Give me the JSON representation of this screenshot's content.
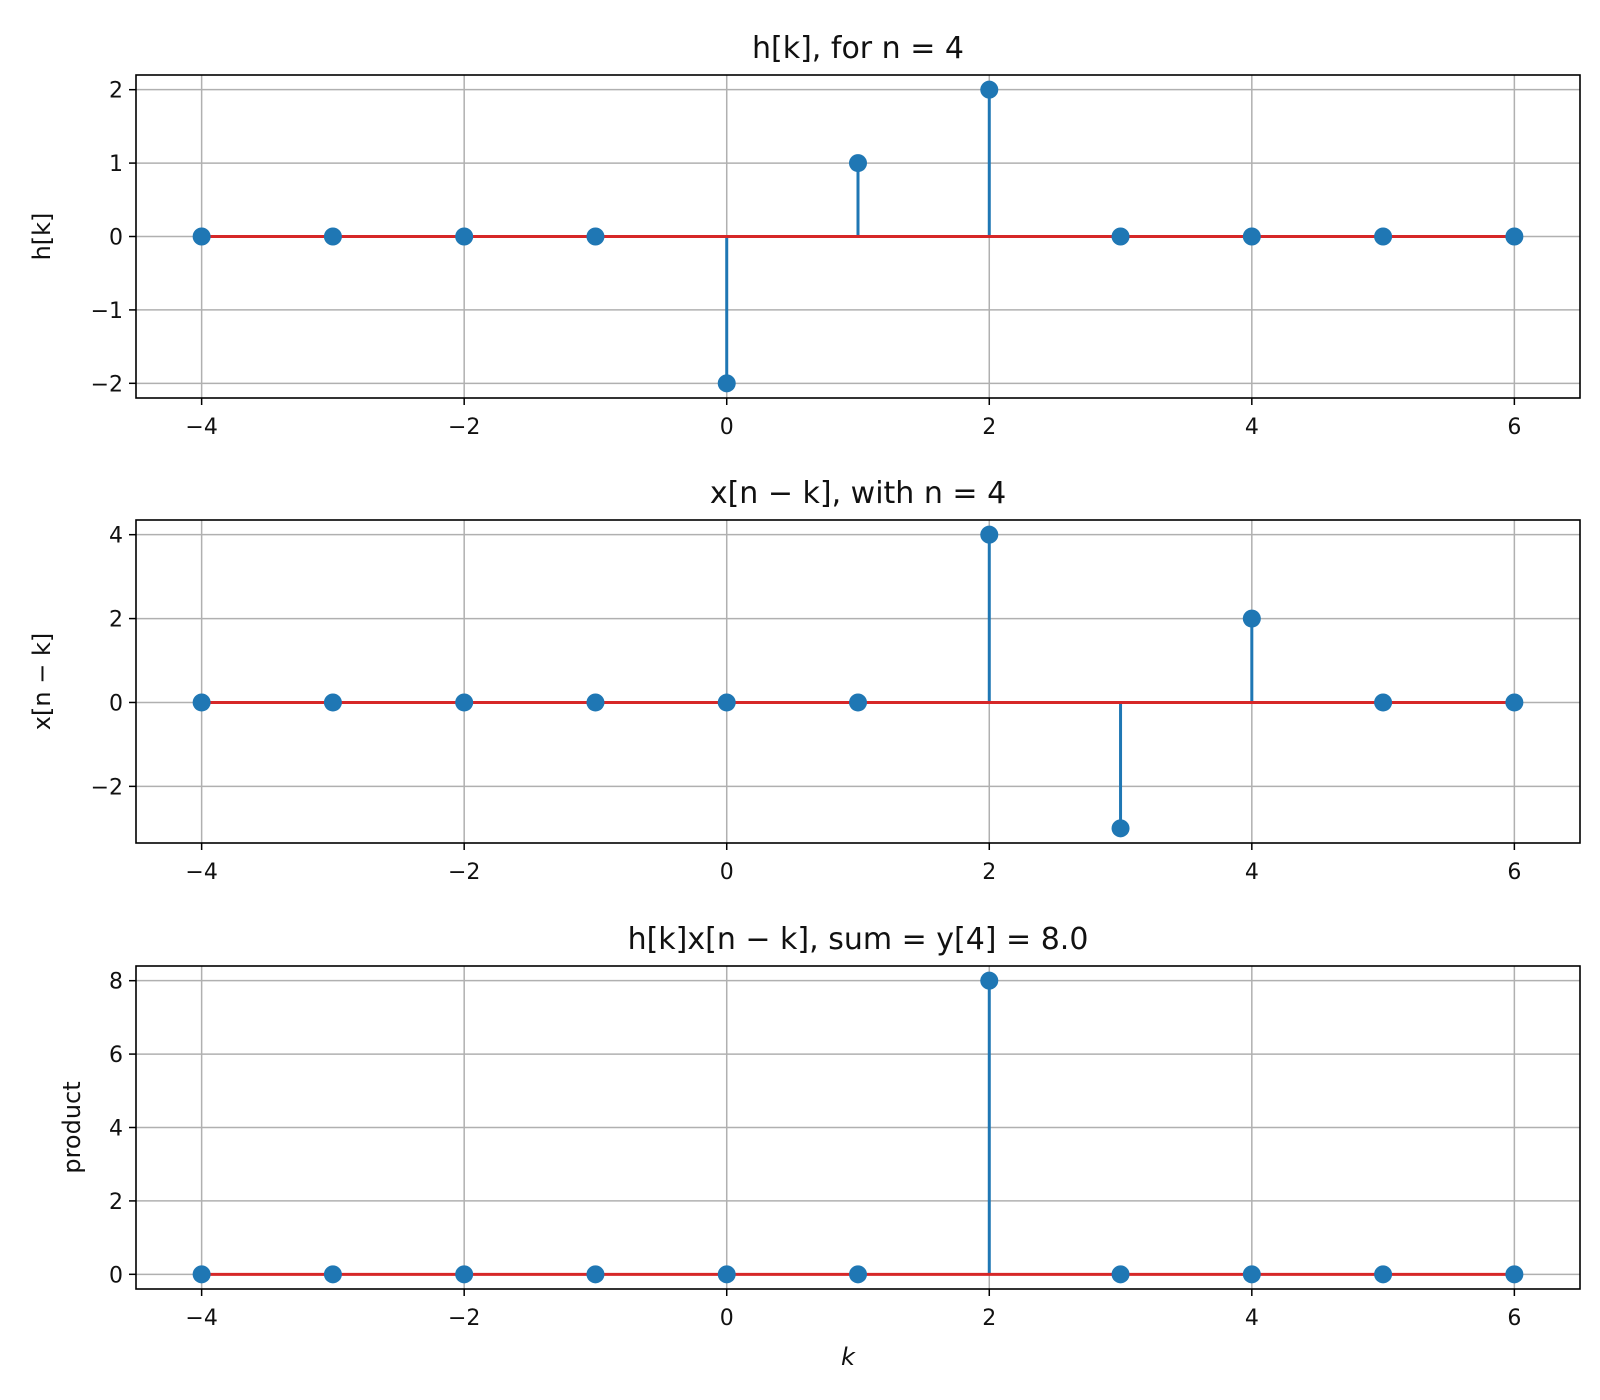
{
  "chart_data": [
    {
      "type": "stem",
      "title": "h[k], for n = 4",
      "xlabel": "",
      "ylabel": "h[k]",
      "xlim": [
        -4.5,
        6.5
      ],
      "ylim": [
        -2.2,
        2.2
      ],
      "xticks": [
        -4,
        -2,
        0,
        2,
        4,
        6
      ],
      "xtick_labels": [
        "−4",
        "−2",
        "0",
        "2",
        "4",
        "6"
      ],
      "yticks": [
        2,
        1,
        0,
        -1,
        -2
      ],
      "ytick_labels": [
        "2",
        "1",
        "0",
        "−1",
        "−2"
      ],
      "grid": true,
      "x": [
        -4,
        -3,
        -2,
        -1,
        0,
        1,
        2,
        3,
        4,
        5,
        6
      ],
      "y": [
        0,
        0,
        0,
        0,
        -2,
        1,
        2,
        0,
        0,
        0,
        0
      ]
    },
    {
      "type": "stem",
      "title": "x[n − k], with n = 4",
      "xlabel": "",
      "ylabel": "x[n − k]",
      "xlim": [
        -4.5,
        6.5
      ],
      "ylim": [
        -3.35,
        4.35
      ],
      "xticks": [
        -4,
        -2,
        0,
        2,
        4,
        6
      ],
      "xtick_labels": [
        "−4",
        "−2",
        "0",
        "2",
        "4",
        "6"
      ],
      "yticks": [
        4,
        2,
        0,
        -2
      ],
      "ytick_labels": [
        "4",
        "2",
        "0",
        "−2"
      ],
      "grid": true,
      "x": [
        -4,
        -3,
        -2,
        -1,
        0,
        1,
        2,
        3,
        4,
        5,
        6
      ],
      "y": [
        0,
        0,
        0,
        0,
        0,
        0,
        4,
        -3,
        2,
        0,
        0
      ]
    },
    {
      "type": "stem",
      "title": "h[k]x[n − k], sum = y[4] = 8.0",
      "xlabel": "k",
      "ylabel": "product",
      "xlim": [
        -4.5,
        6.5
      ],
      "ylim": [
        -0.4,
        8.4
      ],
      "xticks": [
        -4,
        -2,
        0,
        2,
        4,
        6
      ],
      "xtick_labels": [
        "−4",
        "−2",
        "0",
        "2",
        "4",
        "6"
      ],
      "yticks": [
        8,
        6,
        4,
        2,
        0
      ],
      "ytick_labels": [
        "8",
        "6",
        "4",
        "2",
        "0"
      ],
      "grid": true,
      "x": [
        -4,
        -3,
        -2,
        -1,
        0,
        1,
        2,
        3,
        4,
        5,
        6
      ],
      "y": [
        0,
        0,
        0,
        0,
        0,
        0,
        8,
        0,
        0,
        0,
        0
      ]
    }
  ],
  "colors": {
    "stem": "#1f77b4",
    "baseline": "#d62728",
    "grid": "#b0b0b0",
    "axes": "#000000",
    "text": "#111111"
  }
}
